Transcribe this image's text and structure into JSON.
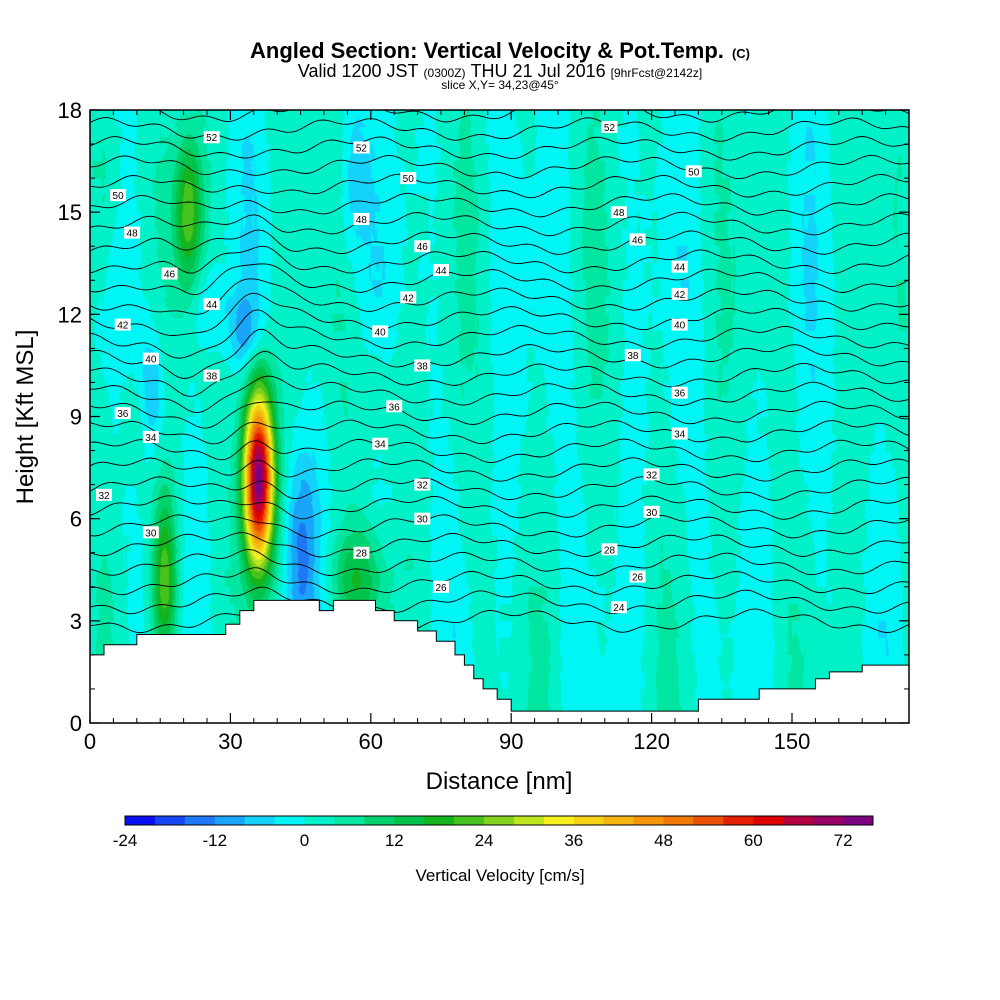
{
  "chart_data": {
    "type": "heatmap",
    "title": "Angled Section: Vertical Velocity & Pot.Temp.",
    "title_units": "(C)",
    "subtitle": {
      "valid_a": "Valid 1200 JST",
      "utc": "(0300Z)",
      "valid_b": "THU 21 Jul 2016",
      "fcst": "[9hrFcst@2142z]"
    },
    "slice_label": "slice X,Y= 34,23@45°",
    "xlabel": "Distance [nm]",
    "ylabel": "Height [Kft MSL]",
    "xlim": [
      0,
      175
    ],
    "ylim": [
      0,
      18
    ],
    "x_ticks": [
      "0",
      "30",
      "60",
      "90",
      "120",
      "150"
    ],
    "y_ticks": [
      "0",
      "3",
      "6",
      "9",
      "12",
      "15",
      "18"
    ],
    "colorbar": {
      "label": "Vertical Velocity [cm/s]",
      "min": -24,
      "max": 76,
      "step": 4,
      "tick_labels": [
        "-24",
        "-12",
        "0",
        "12",
        "24",
        "36",
        "48",
        "60",
        "72"
      ],
      "colors": [
        "#0a0ff5",
        "#1446f5",
        "#1e78f5",
        "#19a5fa",
        "#14d2fa",
        "#00f5f5",
        "#00f0c8",
        "#00e6a0",
        "#00d26e",
        "#00c34b",
        "#14b41e",
        "#46c31e",
        "#82d21e",
        "#bee61e",
        "#f5f01e",
        "#f5d214",
        "#f5b40f",
        "#f5960a",
        "#f07805",
        "#eb5000",
        "#e61e00",
        "#dc0000",
        "#b40041",
        "#960064",
        "#7d0082"
      ]
    },
    "background_value": 0.5,
    "velocity_features": [
      {
        "x": 36,
        "y": 7.2,
        "rx": 3.2,
        "ry": 2.6,
        "peak": 76
      },
      {
        "x": 16,
        "y": 4.2,
        "rx": 2.6,
        "ry": 2.4,
        "peak": 22
      },
      {
        "x": 21,
        "y": 15.0,
        "rx": 3.0,
        "ry": 2.2,
        "peak": 22
      },
      {
        "x": 57,
        "y": 4.2,
        "rx": 6.0,
        "ry": 1.5,
        "peak": 14
      },
      {
        "x": 10,
        "y": 9.0,
        "rx": 3.5,
        "ry": 2.0,
        "peak": 7
      },
      {
        "x": 4,
        "y": 16.0,
        "rx": 4.0,
        "ry": 2.5,
        "peak": 6
      },
      {
        "x": 62,
        "y": 9.5,
        "rx": 5.0,
        "ry": 2.0,
        "peak": 5
      },
      {
        "x": 45,
        "y": 5.0,
        "rx": 3.5,
        "ry": 3.0,
        "peak": -14
      },
      {
        "x": 13,
        "y": 9.7,
        "rx": 3.0,
        "ry": 2.0,
        "peak": -12
      },
      {
        "x": 33,
        "y": 11.5,
        "rx": 3.0,
        "ry": 1.0,
        "peak": -9
      },
      {
        "x": 56,
        "y": 16.0,
        "rx": 3.0,
        "ry": 2.5,
        "peak": -7
      },
      {
        "x": 26,
        "y": 12.3,
        "rx": 4.0,
        "ry": 1.2,
        "peak": -6
      }
    ],
    "isentropes": [
      24,
      25,
      26,
      27,
      28,
      29,
      30,
      31,
      32,
      33,
      34,
      35,
      36,
      37,
      38,
      39,
      40,
      41,
      42,
      43,
      44,
      45,
      46,
      47,
      48,
      49,
      50,
      51,
      52
    ],
    "isentrope_labels": [
      {
        "value": "52",
        "x": 26,
        "y": 17.2
      },
      {
        "value": "52",
        "x": 58,
        "y": 16.9
      },
      {
        "value": "52",
        "x": 111,
        "y": 17.5
      },
      {
        "value": "50",
        "x": 6,
        "y": 15.5
      },
      {
        "value": "50",
        "x": 68,
        "y": 16.0
      },
      {
        "value": "50",
        "x": 129,
        "y": 16.2
      },
      {
        "value": "48",
        "x": 9,
        "y": 14.4
      },
      {
        "value": "48",
        "x": 58,
        "y": 14.8
      },
      {
        "value": "48",
        "x": 113,
        "y": 15.0
      },
      {
        "value": "46",
        "x": 17,
        "y": 13.2
      },
      {
        "value": "46",
        "x": 71,
        "y": 14.0
      },
      {
        "value": "46",
        "x": 117,
        "y": 14.2
      },
      {
        "value": "44",
        "x": 26,
        "y": 12.3
      },
      {
        "value": "44",
        "x": 75,
        "y": 13.3
      },
      {
        "value": "44",
        "x": 126,
        "y": 13.4
      },
      {
        "value": "42",
        "x": 7,
        "y": 11.7
      },
      {
        "value": "42",
        "x": 68,
        "y": 12.5
      },
      {
        "value": "42",
        "x": 126,
        "y": 12.6
      },
      {
        "value": "40",
        "x": 13,
        "y": 10.7
      },
      {
        "value": "40",
        "x": 62,
        "y": 11.5
      },
      {
        "value": "40",
        "x": 126,
        "y": 11.7
      },
      {
        "value": "38",
        "x": 26,
        "y": 10.2
      },
      {
        "value": "38",
        "x": 71,
        "y": 10.5
      },
      {
        "value": "38",
        "x": 116,
        "y": 10.8
      },
      {
        "value": "36",
        "x": 7,
        "y": 9.1
      },
      {
        "value": "36",
        "x": 65,
        "y": 9.3
      },
      {
        "value": "36",
        "x": 126,
        "y": 9.7
      },
      {
        "value": "34",
        "x": 13,
        "y": 8.4
      },
      {
        "value": "34",
        "x": 62,
        "y": 8.2
      },
      {
        "value": "34",
        "x": 126,
        "y": 8.5
      },
      {
        "value": "32",
        "x": 3,
        "y": 6.7
      },
      {
        "value": "32",
        "x": 71,
        "y": 7.0
      },
      {
        "value": "32",
        "x": 120,
        "y": 7.3
      },
      {
        "value": "30",
        "x": 13,
        "y": 5.6
      },
      {
        "value": "30",
        "x": 71,
        "y": 6.0
      },
      {
        "value": "30",
        "x": 120,
        "y": 6.2
      },
      {
        "value": "28",
        "x": 58,
        "y": 5.0
      },
      {
        "value": "28",
        "x": 111,
        "y": 5.1
      },
      {
        "value": "26",
        "x": 75,
        "y": 4.0
      },
      {
        "value": "26",
        "x": 117,
        "y": 4.3
      },
      {
        "value": "24",
        "x": 113,
        "y": 3.4
      }
    ],
    "terrain": [
      [
        0,
        2.0
      ],
      [
        3,
        2.0
      ],
      [
        3,
        2.3
      ],
      [
        10,
        2.3
      ],
      [
        10,
        2.6
      ],
      [
        29,
        2.6
      ],
      [
        29,
        2.9
      ],
      [
        32,
        2.9
      ],
      [
        32,
        3.3
      ],
      [
        35,
        3.3
      ],
      [
        35,
        3.6
      ],
      [
        49,
        3.6
      ],
      [
        49,
        3.3
      ],
      [
        52,
        3.3
      ],
      [
        52,
        3.6
      ],
      [
        61,
        3.6
      ],
      [
        61,
        3.3
      ],
      [
        65,
        3.3
      ],
      [
        65,
        3.0
      ],
      [
        70,
        3.0
      ],
      [
        70,
        2.7
      ],
      [
        74,
        2.7
      ],
      [
        74,
        2.4
      ],
      [
        78,
        2.4
      ],
      [
        78,
        2.0
      ],
      [
        80,
        2.0
      ],
      [
        80,
        1.7
      ],
      [
        82,
        1.7
      ],
      [
        82,
        1.3
      ],
      [
        84,
        1.3
      ],
      [
        84,
        1.0
      ],
      [
        87,
        1.0
      ],
      [
        87,
        0.7
      ],
      [
        90,
        0.7
      ],
      [
        90,
        0.35
      ],
      [
        130,
        0.35
      ],
      [
        130,
        0.7
      ],
      [
        143,
        0.7
      ],
      [
        143,
        1.0
      ],
      [
        155,
        1.0
      ],
      [
        155,
        1.3
      ],
      [
        158,
        1.3
      ],
      [
        158,
        1.5
      ],
      [
        165,
        1.5
      ],
      [
        165,
        1.7
      ],
      [
        175,
        1.7
      ]
    ]
  }
}
